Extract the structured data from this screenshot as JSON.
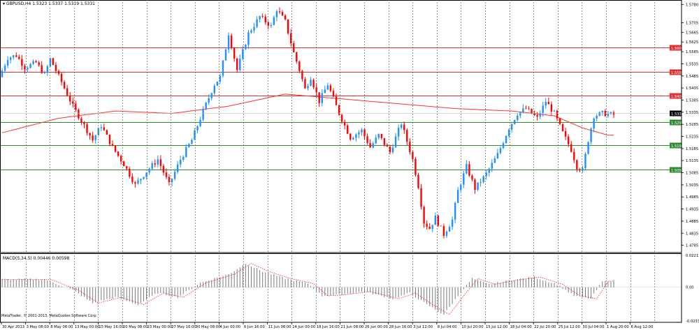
{
  "window": {
    "title": "GBPUSD,H4  1.5323 1.5337 1.5319 1.5331",
    "symbol": "GBPUSD",
    "timeframe": "H4",
    "ohlc": [
      "1.5323",
      "1.5337",
      "1.5319",
      "1.5331"
    ]
  },
  "indicator": {
    "title": "MACD(5,34,5) 0.00446 0.00598"
  },
  "copyright": "MetaTrader, © 2001-2013, MetaQuotes Software Corp.",
  "colors": {
    "bull": "#1e90ff",
    "bear": "#ff0000",
    "ma": "#ff3030",
    "resistance": "#e03030",
    "support": "#2e8b2e",
    "grid": "#555555",
    "macd_hist": "#7a7a7a",
    "macd_signal": "#ff0000",
    "current": "#000000"
  },
  "chart_data": {
    "type": "candlestick",
    "title": "GBPUSD,H4",
    "ylim": [
      1.4755,
      1.579
    ],
    "price_ticks": [
      "1.5780",
      "1.5705",
      "1.5665",
      "1.5625",
      "1.5585",
      "1.5535",
      "1.5485",
      "1.5435",
      "1.5385",
      "1.5335",
      "1.5285",
      "1.5235",
      "1.5185",
      "1.5135",
      "1.5085",
      "1.5035",
      "1.4985",
      "1.4935",
      "1.4885",
      "1.4835",
      "1.4785"
    ],
    "x_tick_labels": [
      "30 Apr 2013",
      "3 May 08:00",
      "8 May 08:00",
      "13 May 00:00",
      "15 May 16:00",
      "20 May 08:00",
      "23 May 00:00",
      "27 May 16:00",
      "30 May 08:00",
      "4 Jun 00:00",
      "6 Jun 16:00",
      "11 Jun 08:00",
      "14 Jun 00:00",
      "18 Jun 16:00",
      "21 Jun 08:00",
      "26 Jun 00:00",
      "28 Jun 16:00",
      "3 Jul 12:00",
      "8 Jul 04:00",
      "10 Jul 20:00",
      "15 Jul 12:00",
      "18 Jul 04:00",
      "22 Jul 20:00",
      "25 Jul 12:00",
      "30 Jul 04:00",
      "1 Aug 20:00",
      "6 Aug 12:00"
    ],
    "price_anchors": [
      [
        0,
        1.548
      ],
      [
        3,
        1.556
      ],
      [
        6,
        1.557
      ],
      [
        9,
        1.552
      ],
      [
        13,
        1.554
      ],
      [
        16,
        1.549
      ],
      [
        18,
        1.5555
      ],
      [
        22,
        1.546
      ],
      [
        26,
        1.536
      ],
      [
        30,
        1.528
      ],
      [
        33,
        1.522
      ],
      [
        36,
        1.528
      ],
      [
        40,
        1.519
      ],
      [
        44,
        1.512
      ],
      [
        48,
        1.5035
      ],
      [
        52,
        1.509
      ],
      [
        56,
        1.514
      ],
      [
        60,
        1.5035
      ],
      [
        64,
        1.514
      ],
      [
        68,
        1.522
      ],
      [
        72,
        1.534
      ],
      [
        76,
        1.545
      ],
      [
        78,
        1.548
      ],
      [
        81,
        1.566
      ],
      [
        84,
        1.551
      ],
      [
        88,
        1.566
      ],
      [
        92,
        1.573
      ],
      [
        96,
        1.569
      ],
      [
        98,
        1.576
      ],
      [
        101,
        1.571
      ],
      [
        104,
        1.558
      ],
      [
        106,
        1.551
      ],
      [
        108,
        1.543
      ],
      [
        110,
        1.548
      ],
      [
        113,
        1.538
      ],
      [
        116,
        1.545
      ],
      [
        120,
        1.533
      ],
      [
        124,
        1.523
      ],
      [
        128,
        1.526
      ],
      [
        131,
        1.519
      ],
      [
        134,
        1.524
      ],
      [
        138,
        1.517
      ],
      [
        142,
        1.529
      ],
      [
        146,
        1.514
      ],
      [
        148,
        1.503
      ],
      [
        150,
        1.488
      ],
      [
        152,
        1.4855
      ],
      [
        154,
        1.49
      ],
      [
        157,
        1.483
      ],
      [
        160,
        1.489
      ],
      [
        162,
        1.501
      ],
      [
        165,
        1.511
      ],
      [
        168,
        1.502
      ],
      [
        172,
        1.508
      ],
      [
        176,
        1.516
      ],
      [
        180,
        1.527
      ],
      [
        183,
        1.533
      ],
      [
        186,
        1.535
      ],
      [
        190,
        1.531
      ],
      [
        193,
        1.538
      ],
      [
        196,
        1.533
      ],
      [
        199,
        1.525
      ],
      [
        202,
        1.518
      ],
      [
        204,
        1.511
      ],
      [
        206,
        1.5095
      ],
      [
        208,
        1.522
      ],
      [
        210,
        1.532
      ],
      [
        213,
        1.533
      ],
      [
        216,
        1.5325
      ]
    ],
    "ma_anchors": [
      [
        0,
        1.525
      ],
      [
        20,
        1.531
      ],
      [
        40,
        1.534
      ],
      [
        60,
        1.533
      ],
      [
        80,
        1.536
      ],
      [
        100,
        1.541
      ],
      [
        120,
        1.539
      ],
      [
        140,
        1.537
      ],
      [
        160,
        1.535
      ],
      [
        180,
        1.534
      ],
      [
        195,
        1.532
      ],
      [
        205,
        1.527
      ],
      [
        214,
        1.524
      ]
    ],
    "candle_count": 217,
    "current_price": "1.5331",
    "levels": [
      {
        "price": 1.5603,
        "label": "1.5603",
        "kind": "resistance"
      },
      {
        "price": 1.5502,
        "label": "1.5502",
        "kind": "resistance"
      },
      {
        "price": 1.5405,
        "label": "1.5405",
        "kind": "resistance"
      },
      {
        "price": 1.5293,
        "label": "1.5293",
        "kind": "support"
      },
      {
        "price": 1.5198,
        "label": "1.5198",
        "kind": "support"
      },
      {
        "price": 1.5099,
        "label": "1.5099",
        "kind": "support"
      }
    ],
    "macd": {
      "ylim": [
        -0.0234,
        0.0221
      ],
      "ticks": [
        "0.02211",
        "0.00",
        "-0.02337"
      ],
      "anchors": [
        [
          0,
          0.0055
        ],
        [
          15,
          0.0055
        ],
        [
          25,
          -0.002
        ],
        [
          32,
          -0.011
        ],
        [
          40,
          -0.007
        ],
        [
          48,
          -0.012
        ],
        [
          55,
          -0.004
        ],
        [
          62,
          -0.007
        ],
        [
          70,
          0.003
        ],
        [
          80,
          0.009
        ],
        [
          86,
          0.0165
        ],
        [
          92,
          0.011
        ],
        [
          100,
          0.006
        ],
        [
          108,
          0.0025
        ],
        [
          113,
          -0.006
        ],
        [
          120,
          -0.005
        ],
        [
          128,
          -0.003
        ],
        [
          138,
          -0.008
        ],
        [
          144,
          -0.004
        ],
        [
          150,
          -0.012
        ],
        [
          156,
          -0.019
        ],
        [
          161,
          -0.006
        ],
        [
          166,
          0.006
        ],
        [
          172,
          0.002
        ],
        [
          180,
          0.005
        ],
        [
          188,
          0.007
        ],
        [
          196,
          0.002
        ],
        [
          202,
          -0.006
        ],
        [
          208,
          -0.008
        ],
        [
          212,
          0.004
        ],
        [
          216,
          0.0045
        ]
      ]
    }
  }
}
